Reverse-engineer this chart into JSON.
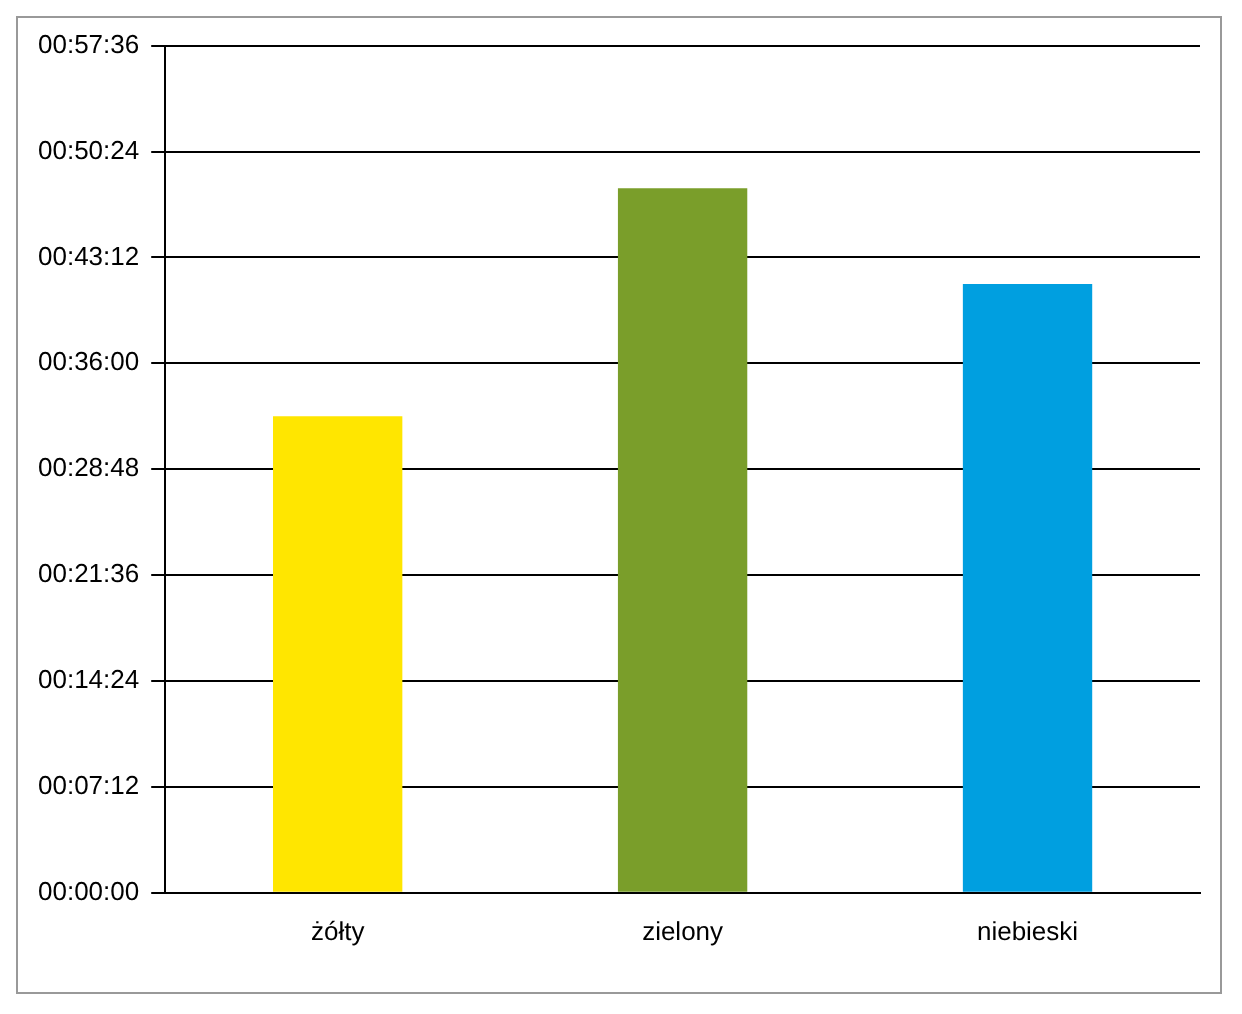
{
  "chart_data": {
    "type": "bar",
    "categories": [
      "żółty",
      "zielony",
      "niebieski"
    ],
    "values": [
      32.4,
      47.9,
      41.4
    ],
    "colors": [
      "#ffe600",
      "#7a9e2a",
      "#009fe0"
    ],
    "ylim": [
      0,
      57.6
    ],
    "yticks": [
      {
        "value": 0,
        "label": "00:00:00"
      },
      {
        "value": 7.2,
        "label": "00:07:12"
      },
      {
        "value": 14.4,
        "label": "00:14:24"
      },
      {
        "value": 21.6,
        "label": "00:21:36"
      },
      {
        "value": 28.8,
        "label": "00:28:48"
      },
      {
        "value": 36,
        "label": "00:36:00"
      },
      {
        "value": 43.2,
        "label": "00:43:12"
      },
      {
        "value": 50.4,
        "label": "00:50:24"
      },
      {
        "value": 57.6,
        "label": "00:57:36"
      }
    ],
    "grid": "y",
    "legend": false
  }
}
